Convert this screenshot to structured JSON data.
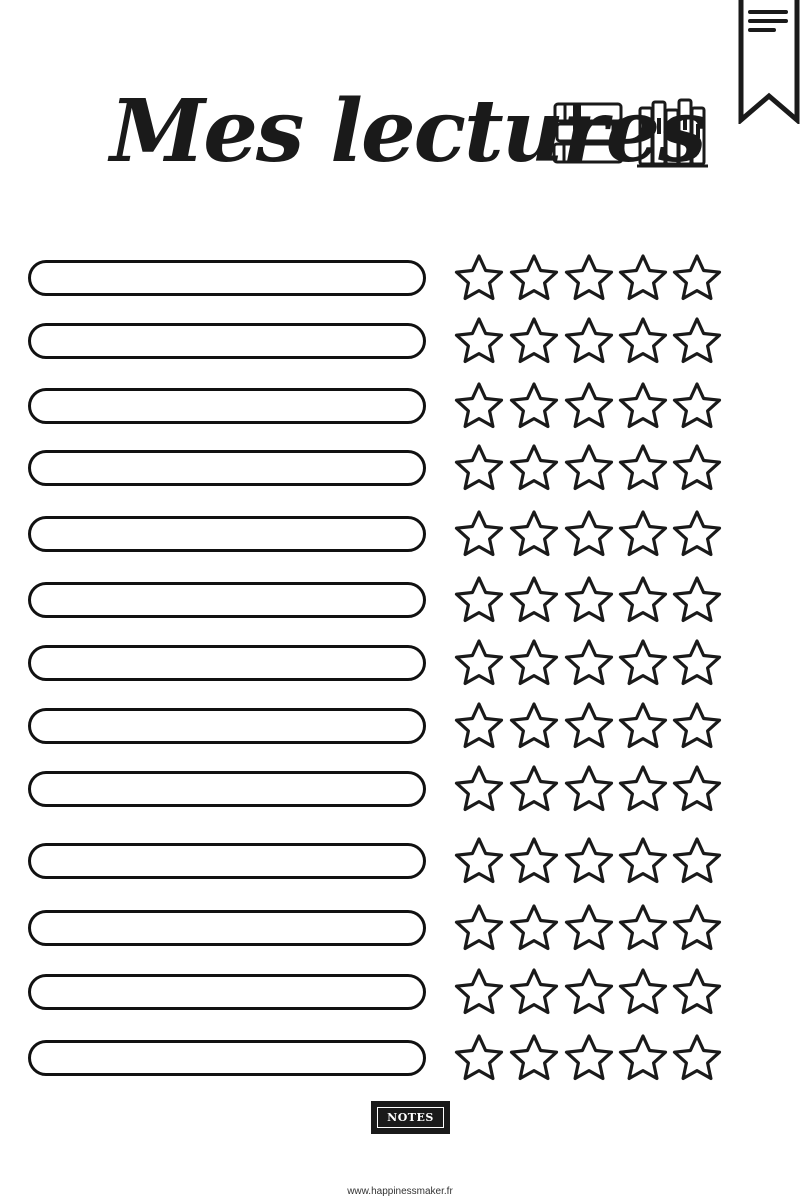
{
  "header": {
    "title": "Mes lectures",
    "icons": [
      "stacked-books-icon",
      "books-on-shelf-icon",
      "bookmark-icon"
    ]
  },
  "reading_list": {
    "row_count": 13,
    "stars_per_row": 5,
    "rows": [
      {
        "title": "",
        "rating": 0
      },
      {
        "title": "",
        "rating": 0
      },
      {
        "title": "",
        "rating": 0
      },
      {
        "title": "",
        "rating": 0
      },
      {
        "title": "",
        "rating": 0
      },
      {
        "title": "",
        "rating": 0
      },
      {
        "title": "",
        "rating": 0
      },
      {
        "title": "",
        "rating": 0
      },
      {
        "title": "",
        "rating": 0
      },
      {
        "title": "",
        "rating": 0
      },
      {
        "title": "",
        "rating": 0
      },
      {
        "title": "",
        "rating": 0
      },
      {
        "title": "",
        "rating": 0
      }
    ]
  },
  "notes_label": "NOTES",
  "footer": {
    "url": "www.happinessmaker.fr"
  },
  "colors": {
    "ink": "#1a1a1a",
    "paper": "#ffffff"
  }
}
